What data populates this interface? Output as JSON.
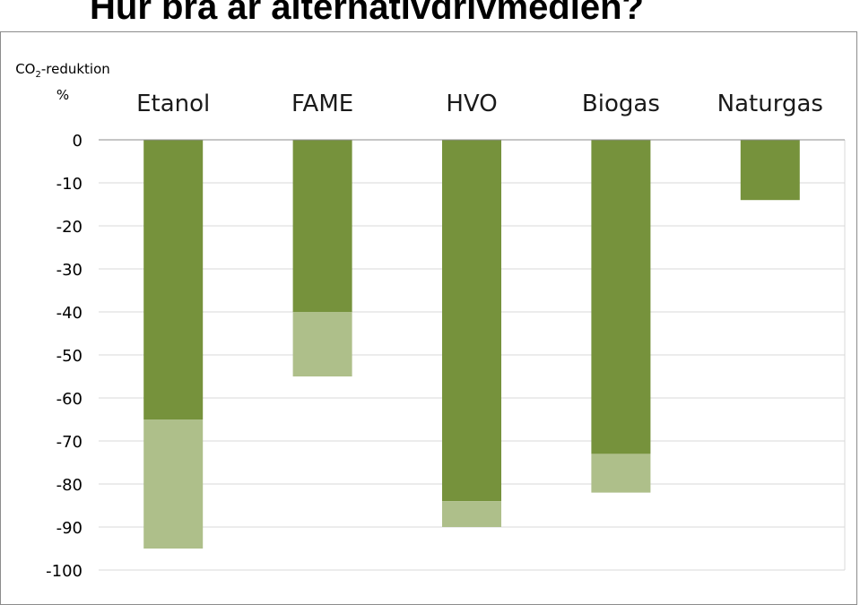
{
  "title": "Hur bra är alternativdrivmedlen?",
  "colors": {
    "primary": "#76923c",
    "extended": "#aebf8a",
    "grid": "#d9d9d9",
    "axis": "#8c8c8c"
  },
  "chart_data": {
    "type": "bar",
    "title": "Hur bra är alternativdrivmedlen?",
    "ylabel_line1": "CO",
    "ylabel_sub": "2",
    "ylabel_rest": "-reduktion",
    "ylabel_line2": "%",
    "categories": [
      "Etanol",
      "FAME",
      "HVO",
      "Biogas",
      "Naturgas"
    ],
    "series": [
      {
        "values": [
          -65,
          -40,
          -84,
          -73,
          -14
        ],
        "color": "#76923c"
      },
      {
        "values": [
          -30,
          -15,
          -6,
          -9,
          0
        ],
        "color": "#aebf8a"
      }
    ],
    "stacked": true,
    "ylim": [
      -100,
      0
    ],
    "yticks": [
      0,
      -10,
      -20,
      -30,
      -40,
      -50,
      -60,
      -70,
      -80,
      -90,
      -100
    ],
    "category_axis_position": "top",
    "grid": true
  }
}
